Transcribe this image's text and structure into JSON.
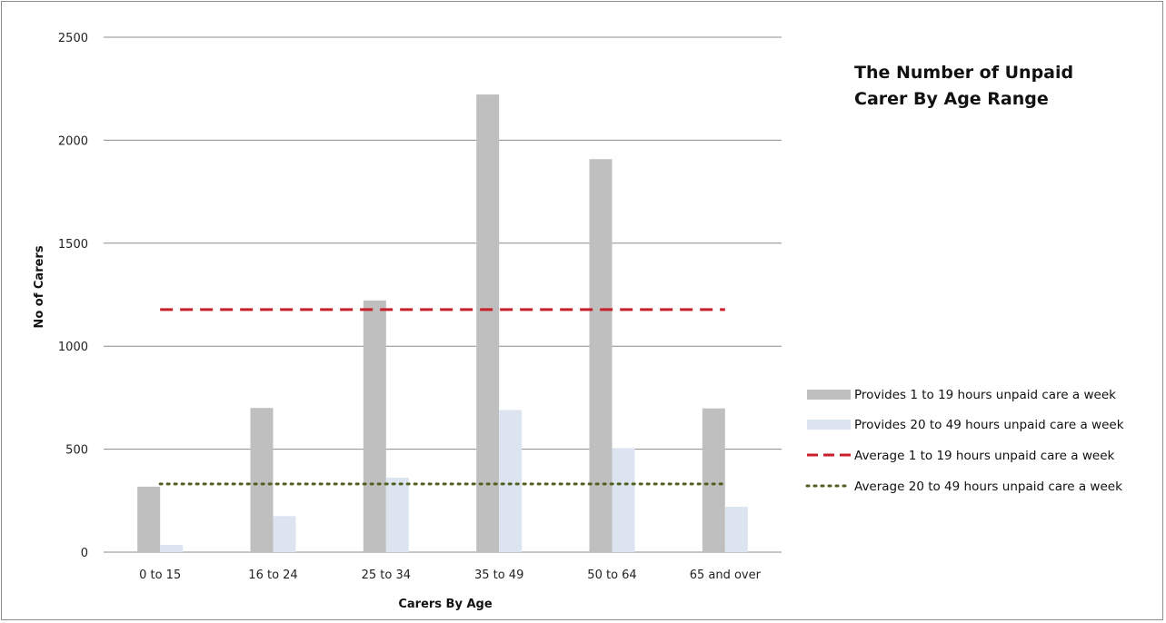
{
  "chart_data": {
    "type": "bar",
    "title_lines": [
      "The Number of Unpaid",
      "Carer By Age Range"
    ],
    "xlabel": "Carers By Age",
    "ylabel": "No of Carers",
    "ylim": [
      0,
      2500
    ],
    "yticks": [
      0,
      500,
      1000,
      1500,
      2000,
      2500
    ],
    "grid": true,
    "legend_position": "right",
    "categories": [
      "0 to 15",
      "16 to 24",
      "25 to 34",
      "35 to 49",
      "50 to 64",
      "65 and over"
    ],
    "series": [
      {
        "name": "Provides 1 to 19 hours unpaid care a week",
        "kind": "bar",
        "color": "#bfbfbf",
        "values": [
          318,
          700,
          1222,
          2222,
          1908,
          698
        ]
      },
      {
        "name": "Provides 20 to 49 hours unpaid care a week",
        "kind": "bar",
        "color": "#dce4f0",
        "values": [
          35,
          175,
          362,
          690,
          505,
          220
        ]
      },
      {
        "name": "Average 1 to 19 hours unpaid care a week",
        "kind": "line",
        "style": "dashed",
        "color": "#c8202b",
        "value": 1178
      },
      {
        "name": "Average 20 to 49 hours unpaid care a week",
        "kind": "line",
        "style": "dotted",
        "color": "#4f5f1f",
        "value": 331
      }
    ]
  }
}
